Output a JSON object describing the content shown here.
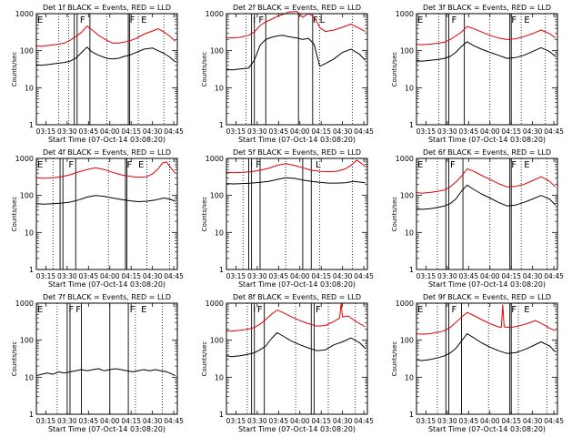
{
  "chart_data": {
    "type": "line",
    "layout": "3x3 grid",
    "y_scale": "log",
    "ylim": [
      1,
      1000
    ],
    "y_ticks": [
      "1",
      "10",
      "100",
      "1000"
    ],
    "ylabel": "Counts/sec",
    "xlabel": "Start Time (07-Oct-14 03:08:20)",
    "x_range": [
      "03:08:20",
      "04:47:30"
    ],
    "x_ticks": [
      "03:15",
      "03:30",
      "03:45",
      "04:00",
      "04:15",
      "04:30",
      "04:45"
    ],
    "series_colors": {
      "events": "#000000",
      "lld": "#e00000"
    },
    "panels": [
      {
        "title": "Det 1f BLACK = Events, RED = LLD",
        "events_x": [
          "03:08",
          "03:12",
          "03:18",
          "03:24",
          "03:28",
          "03:32",
          "03:36",
          "03:40",
          "03:44",
          "03:47",
          "03:52",
          "03:58",
          "04:02",
          "04:06",
          "04:10",
          "04:14",
          "04:18",
          "04:24",
          "04:30",
          "04:34",
          "04:38",
          "04:42",
          "04:46"
        ],
        "events": [
          42,
          40,
          43,
          46,
          48,
          52,
          62,
          88,
          125,
          95,
          75,
          62,
          60,
          62,
          70,
          76,
          88,
          110,
          118,
          100,
          85,
          68,
          50
        ],
        "lld_x": [
          "03:08",
          "03:12",
          "03:18",
          "03:24",
          "03:28",
          "03:32",
          "03:36",
          "03:40",
          "03:44",
          "03:47",
          "03:52",
          "03:58",
          "04:02",
          "04:06",
          "04:10",
          "04:14",
          "04:18",
          "04:24",
          "04:30",
          "04:34",
          "04:38",
          "04:42",
          "04:46"
        ],
        "lld": [
          135,
          132,
          140,
          150,
          160,
          190,
          240,
          310,
          460,
          380,
          260,
          190,
          160,
          160,
          170,
          185,
          210,
          280,
          340,
          390,
          320,
          250,
          180
        ],
        "solid_lines": [
          "03:35",
          "03:37",
          "03:46",
          "04:13",
          "04:14"
        ],
        "dotted_lines": [
          "03:24",
          "03:31",
          "03:58",
          "04:20",
          "04:38"
        ],
        "markers": [
          {
            "label": "E",
            "x": "03:09"
          },
          {
            "label": "F",
            "x": "03:39"
          },
          {
            "label": "F",
            "x": "04:14"
          },
          {
            "label": "E",
            "x": "04:22"
          }
        ]
      },
      {
        "title": "Det 2f BLACK = Events, RED = LLD",
        "events_x": [
          "03:08",
          "03:12",
          "03:18",
          "03:24",
          "03:28",
          "03:32",
          "03:36",
          "03:40",
          "03:44",
          "03:48",
          "03:52",
          "03:58",
          "04:02",
          "04:06",
          "04:10",
          "04:14",
          "04:18",
          "04:24",
          "04:30",
          "04:36",
          "04:42",
          "04:46"
        ],
        "events": [
          32,
          30,
          32,
          34,
          55,
          140,
          200,
          230,
          250,
          260,
          240,
          220,
          200,
          215,
          150,
          38,
          45,
          60,
          90,
          110,
          80,
          55
        ],
        "lld_x": [
          "03:08",
          "03:12",
          "03:18",
          "03:24",
          "03:28",
          "03:32",
          "03:36",
          "03:40",
          "03:44",
          "03:48",
          "03:52",
          "03:58",
          "04:02",
          "04:06",
          "04:10",
          "04:14",
          "04:18",
          "04:24",
          "04:30",
          "04:36",
          "04:42",
          "04:46"
        ],
        "lld": [
          230,
          220,
          230,
          260,
          320,
          480,
          600,
          700,
          850,
          950,
          1100,
          1150,
          800,
          1000,
          820,
          420,
          330,
          360,
          430,
          520,
          400,
          330
        ],
        "solid_lines": [
          "03:26",
          "03:28",
          "03:36",
          "03:59",
          "04:09"
        ],
        "dotted_lines": [
          "03:22",
          "04:14",
          "04:37"
        ],
        "markers": [
          {
            "label": "I",
            "x": "03:27"
          },
          {
            "label": "F",
            "x": "03:31"
          },
          {
            "label": "F",
            "x": "04:09"
          },
          {
            "label": "L",
            "x": "04:14"
          }
        ]
      },
      {
        "title": "Det 3f BLACK = Events, RED = LLD",
        "events_x": [
          "03:08",
          "03:12",
          "03:18",
          "03:24",
          "03:28",
          "03:32",
          "03:36",
          "03:40",
          "03:44",
          "03:48",
          "03:54",
          "04:00",
          "04:06",
          "04:12",
          "04:18",
          "04:24",
          "04:30",
          "04:36",
          "04:42",
          "04:46"
        ],
        "events": [
          55,
          52,
          55,
          58,
          62,
          70,
          90,
          130,
          175,
          140,
          110,
          90,
          75,
          62,
          65,
          75,
          95,
          120,
          95,
          70
        ],
        "lld_x": [
          "03:08",
          "03:12",
          "03:18",
          "03:24",
          "03:28",
          "03:32",
          "03:36",
          "03:40",
          "03:44",
          "03:48",
          "03:54",
          "04:00",
          "04:06",
          "04:12",
          "04:18",
          "04:24",
          "04:30",
          "04:36",
          "04:42",
          "04:46"
        ],
        "lld": [
          150,
          145,
          150,
          160,
          170,
          200,
          250,
          320,
          450,
          400,
          320,
          260,
          220,
          200,
          210,
          240,
          290,
          360,
          290,
          220
        ],
        "solid_lines": [
          "03:29",
          "03:31",
          "03:42",
          "04:14",
          "04:15"
        ],
        "dotted_lines": [
          "03:24",
          "04:00",
          "04:22",
          "04:39"
        ],
        "markers": [
          {
            "label": "E",
            "x": "03:09"
          },
          {
            "label": "F",
            "x": "03:33"
          },
          {
            "label": "F",
            "x": "04:15"
          },
          {
            "label": "E",
            "x": "04:24"
          }
        ]
      },
      {
        "title": "Det 4f BLACK = Events, RED = LLD",
        "events_x": [
          "03:08",
          "03:14",
          "03:20",
          "03:26",
          "03:32",
          "03:38",
          "03:44",
          "03:50",
          "03:56",
          "04:02",
          "04:08",
          "04:14",
          "04:20",
          "04:26",
          "04:32",
          "04:38",
          "04:42",
          "04:46"
        ],
        "events": [
          60,
          58,
          60,
          62,
          66,
          75,
          90,
          100,
          95,
          85,
          78,
          72,
          68,
          70,
          75,
          85,
          80,
          70
        ],
        "lld_x": [
          "03:08",
          "03:14",
          "03:20",
          "03:26",
          "03:32",
          "03:38",
          "03:44",
          "03:50",
          "03:56",
          "04:02",
          "04:08",
          "04:14",
          "04:20",
          "04:26",
          "04:30",
          "04:34",
          "04:37",
          "04:40",
          "04:43",
          "04:46"
        ],
        "lld": [
          300,
          290,
          300,
          320,
          360,
          430,
          500,
          560,
          500,
          420,
          360,
          330,
          310,
          320,
          380,
          520,
          750,
          800,
          550,
          400
        ],
        "solid_lines": [
          "03:25",
          "03:27",
          "03:36",
          "04:11",
          "04:12"
        ],
        "dotted_lines": [
          "03:20",
          "03:59",
          "04:26",
          "04:42"
        ],
        "markers": [
          {
            "label": "E",
            "x": "03:09"
          },
          {
            "label": "F",
            "x": "03:31"
          },
          {
            "label": "F",
            "x": "04:12"
          },
          {
            "label": "E",
            "x": "04:20"
          }
        ]
      },
      {
        "title": "Det 5f BLACK = Events, RED = LLD",
        "events_x": [
          "03:08",
          "03:14",
          "03:20",
          "03:26",
          "03:32",
          "03:38",
          "03:44",
          "03:50",
          "03:56",
          "04:02",
          "04:08",
          "04:14",
          "04:20",
          "04:26",
          "04:32",
          "04:38",
          "04:42",
          "04:46"
        ],
        "events": [
          210,
          205,
          210,
          215,
          225,
          240,
          270,
          300,
          290,
          260,
          240,
          225,
          215,
          215,
          220,
          240,
          230,
          220
        ],
        "lld_x": [
          "03:08",
          "03:14",
          "03:20",
          "03:26",
          "03:32",
          "03:38",
          "03:44",
          "03:50",
          "03:56",
          "04:02",
          "04:08",
          "04:14",
          "04:20",
          "04:26",
          "04:32",
          "04:36",
          "04:40",
          "04:44",
          "04:46"
        ],
        "lld": [
          420,
          410,
          420,
          440,
          480,
          540,
          650,
          720,
          650,
          560,
          480,
          450,
          440,
          450,
          520,
          650,
          900,
          700,
          600
        ],
        "solid_lines": [
          "03:24",
          "03:26",
          "03:32",
          "04:02",
          "04:08"
        ],
        "dotted_lines": [
          "03:20",
          "03:50",
          "04:14",
          "04:37"
        ],
        "markers": [
          {
            "label": "I",
            "x": "03:25"
          },
          {
            "label": "F",
            "x": "03:29"
          },
          {
            "label": "L",
            "x": "04:11"
          }
        ]
      },
      {
        "title": "Det 6f BLACK = Events, RED = LLD",
        "events_x": [
          "03:08",
          "03:12",
          "03:18",
          "03:24",
          "03:28",
          "03:32",
          "03:36",
          "03:40",
          "03:44",
          "03:48",
          "03:54",
          "04:00",
          "04:06",
          "04:12",
          "04:18",
          "04:24",
          "04:30",
          "04:36",
          "04:42",
          "04:46"
        ],
        "events": [
          45,
          42,
          44,
          48,
          52,
          60,
          80,
          130,
          190,
          150,
          110,
          85,
          65,
          52,
          55,
          65,
          80,
          100,
          80,
          55
        ],
        "lld_x": [
          "03:08",
          "03:12",
          "03:18",
          "03:24",
          "03:28",
          "03:32",
          "03:36",
          "03:40",
          "03:44",
          "03:48",
          "03:54",
          "04:00",
          "04:06",
          "04:12",
          "04:18",
          "04:24",
          "04:30",
          "04:36",
          "04:42",
          "04:46"
        ],
        "lld": [
          120,
          115,
          120,
          130,
          140,
          170,
          230,
          330,
          520,
          460,
          350,
          270,
          210,
          170,
          175,
          200,
          250,
          320,
          240,
          170
        ],
        "solid_lines": [
          "03:29",
          "03:31",
          "03:41",
          "04:14",
          "04:15"
        ],
        "dotted_lines": [
          "03:23",
          "04:00",
          "04:22",
          "04:40"
        ],
        "markers": [
          {
            "label": "E",
            "x": "03:09"
          },
          {
            "label": "F",
            "x": "03:32"
          },
          {
            "label": "F",
            "x": "04:15"
          },
          {
            "label": "E",
            "x": "04:24"
          }
        ]
      },
      {
        "title": "Det 7f BLACK = Events, RED = LLD",
        "events_x": [
          "03:08",
          "03:12",
          "03:16",
          "03:20",
          "03:24",
          "03:28",
          "03:32",
          "03:36",
          "03:40",
          "03:44",
          "03:48",
          "03:52",
          "03:56",
          "04:00",
          "04:04",
          "04:08",
          "04:12",
          "04:16",
          "04:20",
          "04:24",
          "04:28",
          "04:32",
          "04:36",
          "04:40",
          "04:44",
          "04:46"
        ],
        "events": [
          11,
          12,
          13,
          12,
          14,
          13,
          14,
          15,
          16,
          15,
          16,
          17,
          15,
          16,
          17,
          16,
          15,
          14,
          15,
          16,
          15,
          16,
          15,
          14,
          12,
          11
        ],
        "lld_x": [],
        "lld": [],
        "solid_lines": [
          "03:30",
          "03:32",
          "03:40",
          "04:00",
          "04:13"
        ],
        "dotted_lines": [
          "03:23",
          "04:18",
          "04:37"
        ],
        "markers": [
          {
            "label": "E",
            "x": "03:09"
          },
          {
            "label": "F",
            "x": "03:31"
          },
          {
            "label": "F",
            "x": "03:36"
          },
          {
            "label": "F",
            "x": "04:14"
          },
          {
            "label": "E",
            "x": "04:22"
          }
        ]
      },
      {
        "title": "Det 8f BLACK = Events, RED = LLD",
        "events_x": [
          "03:08",
          "03:12",
          "03:18",
          "03:24",
          "03:28",
          "03:32",
          "03:36",
          "03:40",
          "03:44",
          "03:48",
          "03:54",
          "04:00",
          "04:06",
          "04:12",
          "04:18",
          "04:24",
          "04:30",
          "04:36",
          "04:42",
          "04:46"
        ],
        "events": [
          38,
          36,
          38,
          42,
          46,
          55,
          70,
          110,
          160,
          130,
          95,
          75,
          62,
          52,
          55,
          75,
          90,
          115,
          85,
          60
        ],
        "lld_x": [
          "03:08",
          "03:12",
          "03:18",
          "03:24",
          "03:28",
          "03:32",
          "03:36",
          "03:40",
          "03:44",
          "03:48",
          "03:54",
          "04:00",
          "04:06",
          "04:12",
          "04:18",
          "04:24",
          "04:28",
          "04:29",
          "04:30",
          "04:34",
          "04:38",
          "04:42",
          "04:46"
        ],
        "lld": [
          180,
          175,
          185,
          200,
          220,
          270,
          360,
          500,
          650,
          560,
          430,
          340,
          280,
          240,
          250,
          320,
          400,
          1000,
          420,
          450,
          350,
          280,
          230
        ],
        "solid_lines": [
          "03:26",
          "03:28",
          "03:35",
          "04:08",
          "04:10"
        ],
        "dotted_lines": [
          "03:23",
          "03:57",
          "04:20",
          "04:39"
        ],
        "markers": [
          {
            "label": "I",
            "x": "03:27"
          },
          {
            "label": "F",
            "x": "03:30"
          },
          {
            "label": "F",
            "x": "04:11"
          }
        ]
      },
      {
        "title": "Det 9f BLACK = Events, RED = LLD",
        "events_x": [
          "03:08",
          "03:12",
          "03:18",
          "03:24",
          "03:28",
          "03:32",
          "03:36",
          "03:40",
          "03:44",
          "03:48",
          "03:54",
          "04:00",
          "04:06",
          "04:12",
          "04:18",
          "04:24",
          "04:30",
          "04:36",
          "04:42",
          "04:46"
        ],
        "events": [
          30,
          28,
          30,
          34,
          38,
          45,
          60,
          95,
          150,
          120,
          85,
          65,
          52,
          44,
          46,
          55,
          70,
          90,
          70,
          48
        ],
        "lld_x": [
          "03:08",
          "03:12",
          "03:18",
          "03:24",
          "03:28",
          "03:32",
          "03:36",
          "03:40",
          "03:44",
          "03:48",
          "03:54",
          "04:00",
          "04:06",
          "04:08",
          "04:09",
          "04:10",
          "04:14",
          "04:20",
          "04:26",
          "04:32",
          "04:38",
          "04:42",
          "04:46"
        ],
        "lld": [
          150,
          145,
          150,
          165,
          180,
          220,
          300,
          420,
          560,
          480,
          360,
          280,
          230,
          220,
          900,
          230,
          220,
          240,
          280,
          340,
          260,
          210,
          180
        ],
        "solid_lines": [
          "03:29",
          "03:31",
          "03:40",
          "04:14",
          "04:15"
        ],
        "dotted_lines": [
          "03:23",
          "03:59",
          "04:20",
          "04:40"
        ],
        "markers": [
          {
            "label": "E",
            "x": "03:09"
          },
          {
            "label": "F",
            "x": "03:33"
          },
          {
            "label": "F",
            "x": "04:15"
          },
          {
            "label": "E",
            "x": "04:24"
          }
        ]
      }
    ]
  }
}
